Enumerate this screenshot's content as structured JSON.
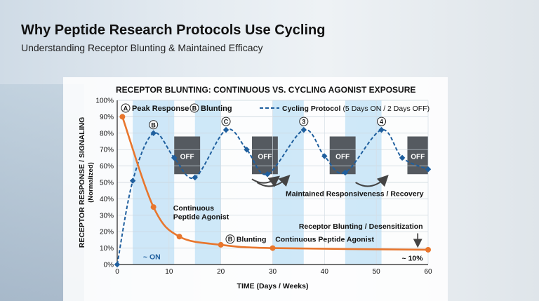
{
  "header": {
    "title": "Why Peptide Research Protocols Use Cycling",
    "subtitle": "Understanding Receptor Blunting & Maintained Efficacy"
  },
  "chart_data": {
    "type": "line",
    "title": "RECEPTOR BLUNTING: CONTINUOUS VS. CYCLING AGONIST EXPOSURE",
    "xlabel": "TIME (Days / Weeks)",
    "ylabel": "RECEPTOR RESPONSE / SIGNALING",
    "ylabel_sub": "(Normalized)",
    "xlim": [
      0,
      60
    ],
    "ylim": [
      0,
      100
    ],
    "x_ticks": [
      0,
      10,
      20,
      30,
      40,
      50,
      60
    ],
    "y_ticks": [
      0,
      10,
      20,
      30,
      40,
      50,
      60,
      70,
      80,
      90,
      100
    ],
    "x_tick_labels": [
      "0",
      "10",
      "20",
      "30",
      "40",
      "50",
      "60"
    ],
    "y_tick_labels": [
      "0%",
      "10%",
      "20%",
      "30%",
      "40%",
      "50%",
      "60%",
      "70%",
      "80%",
      "90%",
      "100%"
    ],
    "legend": {
      "peak_marker": "A",
      "peak_label": "Peak Response",
      "blunting_marker": "B",
      "blunting_label": "Blunting",
      "cycling_label": "Cycling Protocol",
      "cycling_detail": "(5 Days ON / 2 Days OFF)"
    },
    "series": [
      {
        "name": "Continuous Peptide Agonist",
        "color": "#e8762d",
        "style": "solid",
        "x": [
          1,
          7,
          12,
          20,
          30,
          60
        ],
        "y": [
          90,
          35,
          17,
          12,
          10,
          9
        ]
      },
      {
        "name": "Cycling Protocol",
        "color": "#1f5f9e",
        "style": "dashed",
        "x": [
          0,
          3,
          7,
          11,
          15,
          21,
          25,
          29,
          36,
          40,
          44,
          51,
          55,
          60
        ],
        "y": [
          0,
          51,
          80,
          65,
          53,
          82,
          70,
          55,
          82,
          66,
          56,
          82,
          65,
          58
        ]
      }
    ],
    "on_windows": [
      [
        3,
        11
      ],
      [
        15,
        20
      ],
      [
        30,
        36
      ],
      [
        44,
        51
      ]
    ],
    "off_windows": [
      {
        "x0": 11,
        "x1": 16,
        "label": "OFF"
      },
      {
        "x0": 26,
        "x1": 31,
        "label": "OFF"
      },
      {
        "x0": 41,
        "x1": 46,
        "label": "OFF"
      },
      {
        "x0": 56,
        "x1": 60,
        "label": "OFF"
      }
    ],
    "cycle_markers": [
      {
        "x": 7,
        "y": 80,
        "label": "B"
      },
      {
        "x": 21,
        "y": 82,
        "label": "C"
      },
      {
        "x": 36,
        "y": 82,
        "label": "3"
      },
      {
        "x": 51,
        "y": 82,
        "label": "4"
      }
    ],
    "annotations": {
      "continuous_label_line1": "Continuous",
      "continuous_label_line2": "Peptide Agonist",
      "blunting_marker": "B",
      "blunting_label": "Blunting",
      "continuous_label_bottom": "Continuous Peptide Agonist",
      "maintained": "Maintained Responsiveness / Recovery",
      "desensitization": "Receptor Blunting / Desensitization",
      "end_value": "~ 10%",
      "on_label": "~ ON"
    },
    "grid": true
  }
}
